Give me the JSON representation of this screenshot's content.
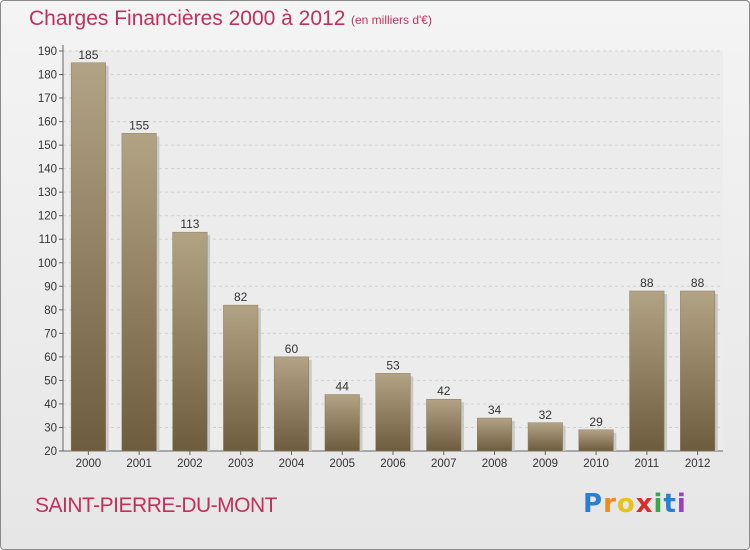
{
  "chart_data": {
    "type": "bar",
    "title": "Charges Financières 2000 à 2012",
    "subtitle": "(en milliers d'€)",
    "categories": [
      "2000",
      "2001",
      "2002",
      "2003",
      "2004",
      "2005",
      "2006",
      "2007",
      "2008",
      "2009",
      "2010",
      "2011",
      "2012"
    ],
    "values": [
      185,
      155,
      113,
      82,
      60,
      44,
      53,
      42,
      34,
      32,
      29,
      88,
      88
    ],
    "data_labels": [
      "185",
      "155",
      "113",
      "82",
      "60",
      "44",
      "53",
      "42",
      "34",
      "32",
      "29",
      "88",
      "88"
    ],
    "ylim": [
      20,
      190
    ],
    "yticks": [
      "20",
      "30",
      "40",
      "50",
      "60",
      "70",
      "80",
      "90",
      "100",
      "110",
      "120",
      "130",
      "140",
      "150",
      "160",
      "170",
      "180",
      "190"
    ],
    "grid": true,
    "xlabel": "",
    "ylabel": ""
  },
  "location": "SAINT-PIERRE-DU-MONT",
  "logo": {
    "letters": [
      "P",
      "r",
      "o",
      "x",
      "i",
      "t",
      "i"
    ],
    "colors": [
      "#2a7fd0",
      "#f08a1c",
      "#e8c21a",
      "#d92c2c",
      "#3aa64a",
      "#2a7fd0",
      "#9b3fc0"
    ]
  },
  "colors": {
    "title": "#c0305e",
    "bar_dark": "#6e5c3e",
    "bar_light": "#b3a385",
    "grid": "#d0d0d0"
  }
}
